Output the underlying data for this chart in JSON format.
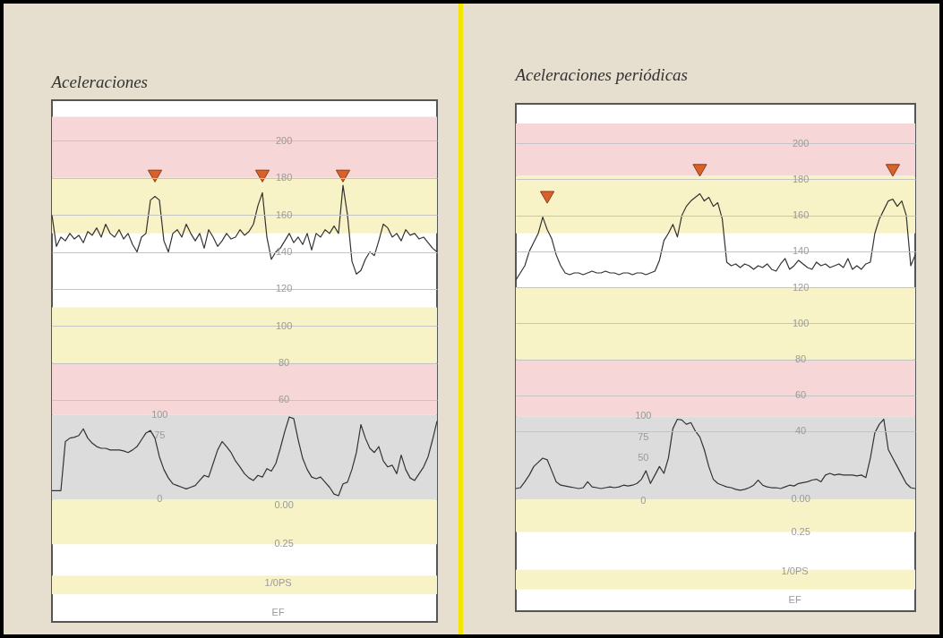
{
  "chart_data": [
    {
      "type": "line",
      "title": "Aceleraciones",
      "categories": [
        null,
        null,
        null,
        null,
        null,
        null,
        null,
        null,
        null,
        null,
        null,
        null,
        null,
        null,
        null,
        null,
        null,
        null,
        null,
        null,
        null,
        null,
        null,
        null,
        null,
        null,
        null,
        null,
        null,
        null,
        null,
        null,
        null,
        null,
        null,
        null,
        null,
        null,
        null,
        null,
        null,
        null,
        null,
        null,
        null,
        null,
        null,
        null,
        null,
        null,
        null,
        null,
        null,
        null,
        null,
        null,
        null,
        null,
        null,
        null,
        null,
        null,
        null,
        null,
        null,
        null,
        null,
        null,
        null,
        null,
        null,
        null,
        null,
        null,
        null,
        null,
        null,
        null,
        null,
        null,
        null,
        null,
        null,
        null,
        null,
        null,
        null
      ],
      "ylim": [
        -60,
        222
      ],
      "yticks": [
        200,
        180,
        160,
        140,
        120,
        100,
        80,
        60
      ],
      "y3lim": [
        0.76,
        -2.63
      ],
      "y3ticks": [
        {
          "value": 0,
          "label": "0.00"
        },
        0.25
      ],
      "annotations": [
        "1/0PS",
        "EF"
      ],
      "y2lim": [
        -145,
        471
      ],
      "y2ticks": [
        0,
        75,
        100
      ],
      "tick_labels": "y",
      "grid": "y",
      "bands": [
        {
          "axis": "y",
          "from": 180,
          "to": 213,
          "color": "#f7d6d8"
        },
        {
          "axis": "y",
          "from": 150,
          "to": 180,
          "color": "#f7f3c6"
        },
        {
          "axis": "y",
          "from": 80,
          "to": 110,
          "color": "#f7f3c6"
        },
        {
          "axis": "y",
          "from": 52,
          "to": 80,
          "color": "#f7d6d8"
        },
        {
          "axis": "y",
          "from": 6,
          "to": 52,
          "color": "#dcdcdc"
        },
        {
          "axis": "y",
          "from": -18,
          "to": 6,
          "color": "#f7f3c6"
        },
        {
          "axis": "y",
          "from": -45,
          "to": -35,
          "color": "#f7f3c6"
        }
      ],
      "series": [
        {
          "type": "line",
          "color": "#333333",
          "values": [
            160,
            143,
            148,
            146,
            150,
            147,
            149,
            145,
            151,
            149,
            153,
            148,
            155,
            150,
            148,
            152,
            147,
            150,
            144,
            140,
            148,
            150,
            168,
            170,
            168,
            146,
            140,
            150,
            152,
            148,
            155,
            150,
            146,
            150,
            142,
            152,
            148,
            143,
            146,
            150,
            147,
            148,
            152,
            149,
            151,
            155,
            165,
            172,
            148,
            136,
            140,
            142,
            146,
            150,
            145,
            148,
            144,
            150,
            141,
            150,
            148,
            152,
            150,
            154,
            150,
            176,
            160,
            135,
            128,
            130,
            136,
            140,
            138,
            146,
            155,
            153,
            148,
            150,
            146,
            152,
            149,
            150,
            147,
            148,
            145,
            142,
            140
          ]
        },
        {
          "type": "line",
          "axis": "y2",
          "color": "#333333",
          "values": [
            10,
            10,
            10,
            68,
            72,
            73,
            75,
            83,
            72,
            66,
            62,
            60,
            60,
            58,
            58,
            58,
            57,
            55,
            58,
            62,
            70,
            78,
            81,
            72,
            50,
            35,
            25,
            18,
            16,
            14,
            12,
            14,
            16,
            22,
            28,
            26,
            42,
            58,
            68,
            62,
            55,
            45,
            38,
            30,
            25,
            22,
            28,
            26,
            36,
            33,
            42,
            60,
            80,
            97,
            95,
            70,
            48,
            35,
            26,
            24,
            26,
            20,
            14,
            6,
            4,
            18,
            20,
            35,
            55,
            88,
            72,
            60,
            55,
            62,
            45,
            38,
            40,
            30,
            52,
            35,
            25,
            22,
            30,
            38,
            50,
            70,
            92
          ]
        },
        {
          "type": "scatter",
          "color": "#d9622b",
          "marker": "triangle",
          "values": [
            null,
            null,
            null,
            null,
            null,
            null,
            null,
            null,
            null,
            null,
            null,
            null,
            null,
            null,
            null,
            null,
            null,
            null,
            null,
            null,
            null,
            null,
            null,
            181,
            null,
            null,
            null,
            null,
            null,
            null,
            null,
            null,
            null,
            null,
            null,
            null,
            null,
            null,
            null,
            null,
            null,
            null,
            null,
            null,
            null,
            null,
            null,
            181,
            null,
            null,
            null,
            null,
            null,
            null,
            null,
            null,
            null,
            null,
            null,
            null,
            null,
            null,
            null,
            null,
            null,
            181,
            null,
            null,
            null,
            null,
            null,
            null,
            null,
            null,
            null,
            null,
            null,
            null,
            null,
            null,
            null,
            null,
            null,
            null,
            null,
            null,
            null
          ]
        }
      ]
    },
    {
      "type": "line",
      "title": "Aceleraciones periódicas",
      "categories": [
        null,
        null,
        null,
        null,
        null,
        null,
        null,
        null,
        null,
        null,
        null,
        null,
        null,
        null,
        null,
        null,
        null,
        null,
        null,
        null,
        null,
        null,
        null,
        null,
        null,
        null,
        null,
        null,
        null,
        null,
        null,
        null,
        null,
        null,
        null,
        null,
        null,
        null,
        null,
        null,
        null,
        null,
        null,
        null,
        null,
        null,
        null,
        null,
        null,
        null,
        null,
        null,
        null,
        null,
        null,
        null,
        null,
        null,
        null,
        null,
        null,
        null,
        null,
        null,
        null,
        null,
        null,
        null,
        null,
        null,
        null,
        null,
        null,
        null,
        null,
        null,
        null,
        null,
        null,
        null,
        null,
        null,
        null,
        null,
        null,
        null,
        null,
        null,
        null,
        null
      ],
      "ylim": [
        -60,
        222
      ],
      "yticks": [
        200,
        180,
        160,
        140,
        120,
        100,
        80,
        60,
        40
      ],
      "y3lim": [
        0.85,
        -2.99
      ],
      "y3ticks": [
        {
          "value": 0,
          "label": "0.00"
        },
        0.25
      ],
      "annotations": [
        "1/0PS",
        "EF"
      ],
      "y2lim": [
        -131,
        469
      ],
      "y2ticks": [
        0,
        50,
        75,
        100
      ],
      "tick_labels": "y",
      "grid": "y",
      "bands": [
        {
          "axis": "y",
          "from": 182,
          "to": 211,
          "color": "#f7d6d8"
        },
        {
          "axis": "y",
          "from": 150,
          "to": 182,
          "color": "#f7f3c6"
        },
        {
          "axis": "y",
          "from": 80,
          "to": 120,
          "color": "#f7f3c6"
        },
        {
          "axis": "y",
          "from": 48,
          "to": 80,
          "color": "#f7d6d8"
        },
        {
          "axis": "y",
          "from": 2,
          "to": 48,
          "color": "#dcdcdc"
        },
        {
          "axis": "y",
          "from": -16,
          "to": 2,
          "color": "#f7f3c6"
        },
        {
          "axis": "y",
          "from": -48,
          "to": -37,
          "color": "#f7f3c6"
        }
      ],
      "series": [
        {
          "type": "line",
          "color": "#333333",
          "values": [
            124,
            128,
            132,
            140,
            145,
            150,
            159,
            152,
            147,
            138,
            132,
            128,
            127,
            128,
            128,
            127,
            128,
            129,
            128,
            128,
            129,
            128,
            128,
            127,
            128,
            128,
            127,
            128,
            128,
            127,
            128,
            129,
            135,
            146,
            150,
            155,
            148,
            160,
            165,
            168,
            170,
            172,
            168,
            170,
            165,
            167,
            158,
            134,
            132,
            133,
            131,
            133,
            132,
            130,
            132,
            131,
            133,
            130,
            129,
            133,
            136,
            130,
            132,
            135,
            133,
            131,
            130,
            134,
            132,
            133,
            131,
            132,
            133,
            131,
            136,
            130,
            132,
            130,
            133,
            134,
            150,
            158,
            163,
            168,
            169,
            165,
            168,
            160,
            132,
            138
          ]
        },
        {
          "type": "line",
          "axis": "y2",
          "color": "#333333",
          "values": [
            14,
            15,
            22,
            30,
            40,
            45,
            50,
            48,
            35,
            22,
            18,
            17,
            16,
            15,
            14,
            15,
            22,
            16,
            15,
            14,
            15,
            16,
            15,
            16,
            18,
            17,
            18,
            20,
            25,
            35,
            20,
            30,
            40,
            32,
            50,
            85,
            96,
            95,
            90,
            92,
            82,
            75,
            60,
            40,
            25,
            20,
            18,
            16,
            15,
            13,
            12,
            13,
            15,
            18,
            24,
            18,
            16,
            15,
            15,
            14,
            16,
            18,
            17,
            20,
            21,
            22,
            24,
            25,
            22,
            30,
            32,
            30,
            31,
            30,
            30,
            30,
            29,
            30,
            27,
            50,
            80,
            90,
            96,
            60,
            50,
            40,
            30,
            20,
            15,
            14
          ]
        },
        {
          "type": "scatter",
          "color": "#d9622b",
          "marker": "triangle",
          "values": [
            null,
            null,
            null,
            null,
            null,
            null,
            null,
            170,
            null,
            null,
            null,
            null,
            null,
            null,
            null,
            null,
            null,
            null,
            null,
            null,
            null,
            null,
            null,
            null,
            null,
            null,
            null,
            null,
            null,
            null,
            null,
            null,
            null,
            null,
            null,
            null,
            null,
            null,
            null,
            null,
            null,
            185,
            null,
            null,
            null,
            null,
            null,
            null,
            null,
            null,
            null,
            null,
            null,
            null,
            null,
            null,
            null,
            null,
            null,
            null,
            null,
            null,
            null,
            null,
            null,
            null,
            null,
            null,
            null,
            null,
            null,
            null,
            null,
            null,
            null,
            null,
            null,
            null,
            null,
            null,
            null,
            null,
            null,
            null,
            185,
            null,
            null,
            null,
            null,
            null
          ]
        }
      ]
    }
  ]
}
